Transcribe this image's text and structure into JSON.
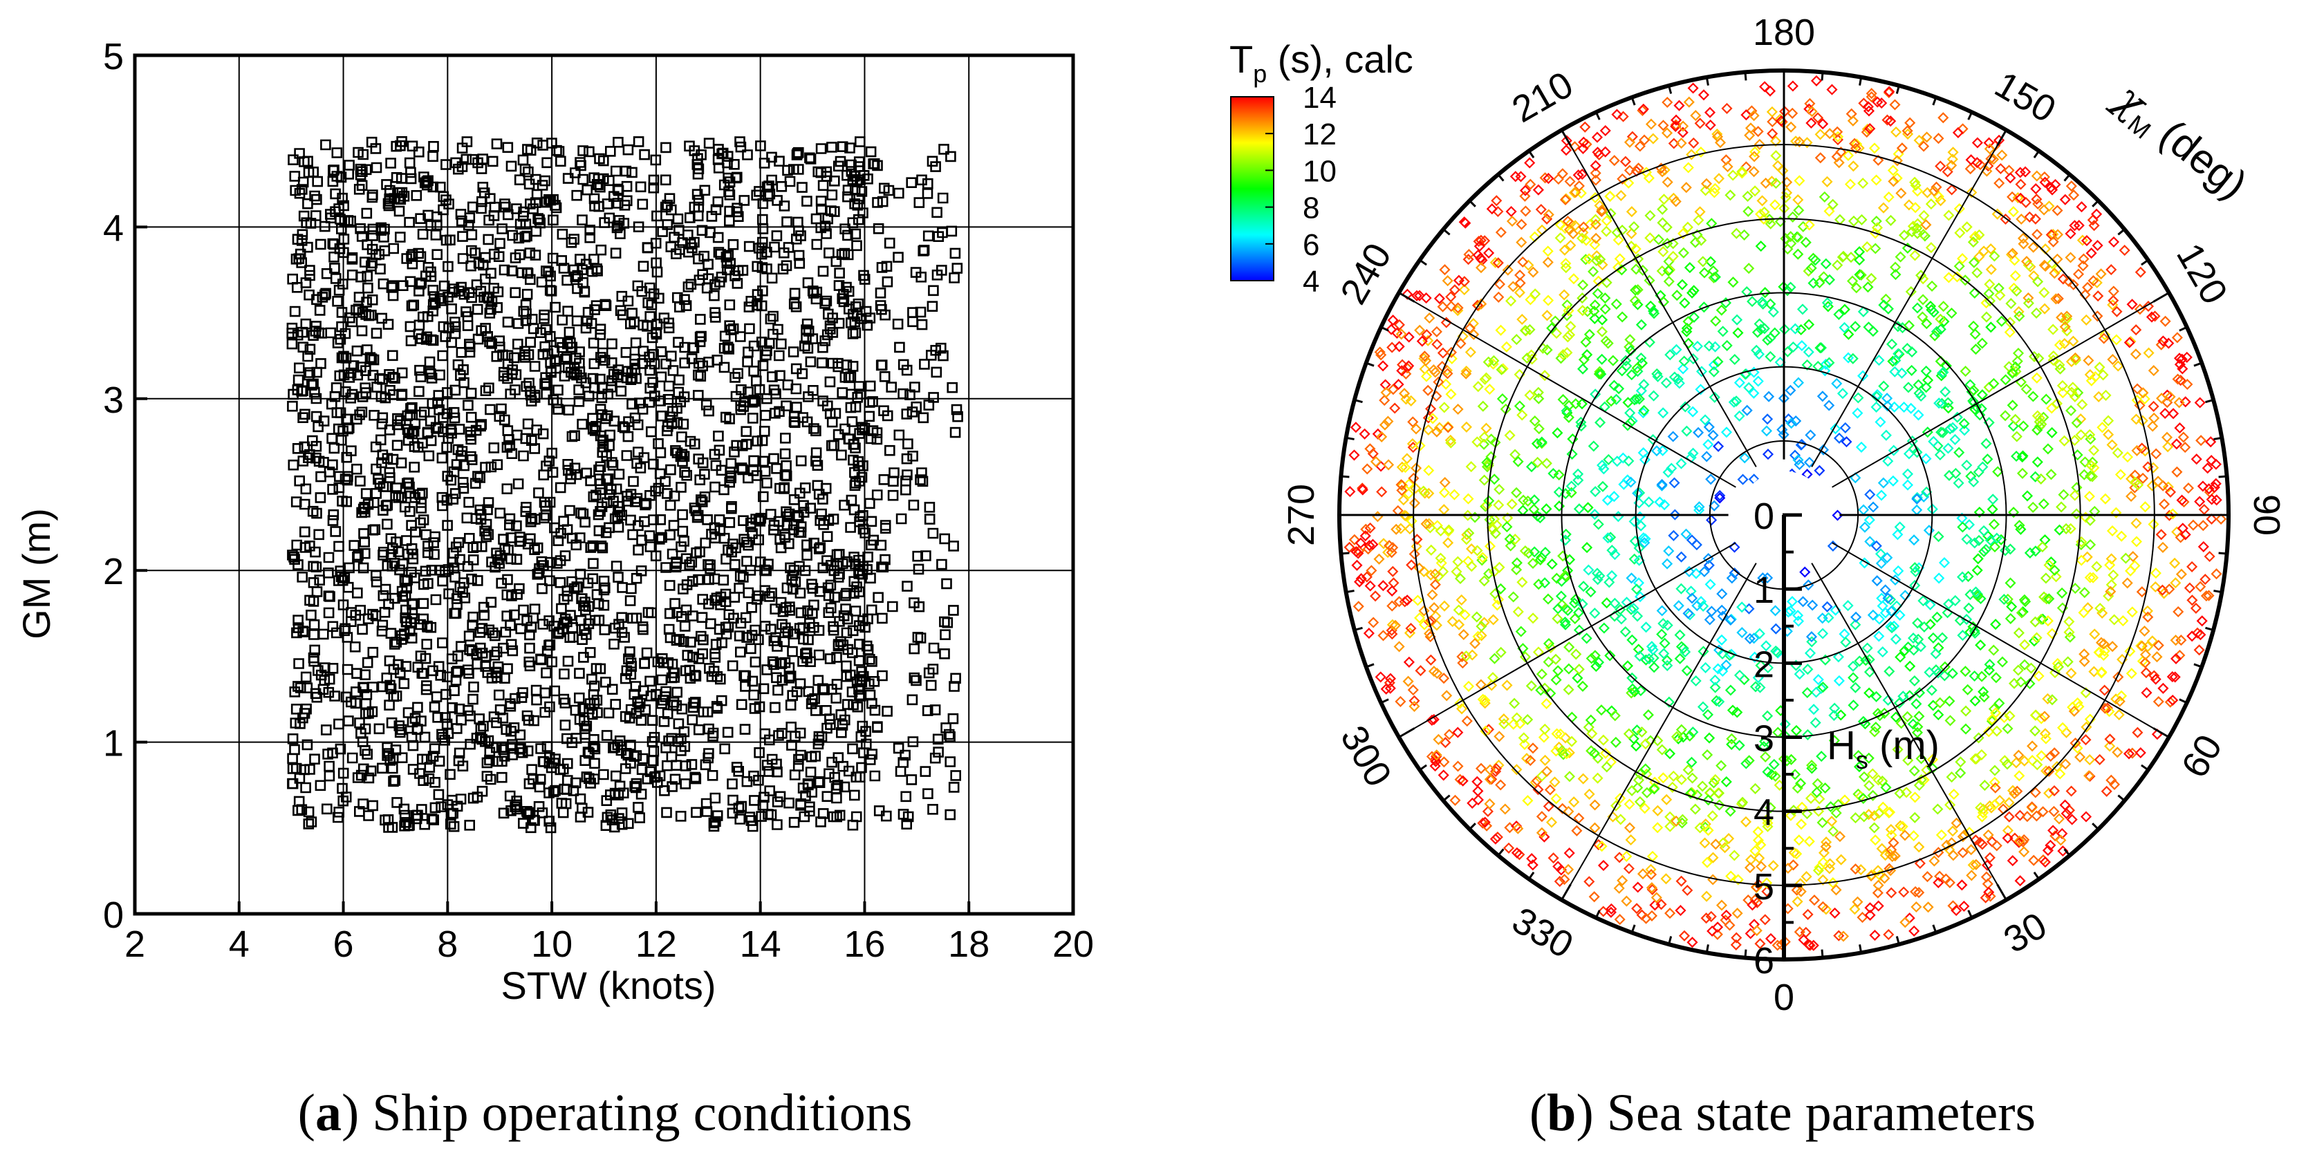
{
  "chart_data": [
    {
      "id": "a",
      "type": "scatter",
      "xlabel": "STW (knots)",
      "ylabel": "GM (m)",
      "xlim": [
        2,
        20
      ],
      "ylim": [
        0,
        5
      ],
      "xticks": [
        "2",
        "4",
        "6",
        "8",
        "10",
        "12",
        "14",
        "16",
        "18",
        "20"
      ],
      "yticks": [
        "0",
        "1",
        "2",
        "3",
        "4",
        "5"
      ],
      "grid": true,
      "marker": "square",
      "marker_color": "#000000",
      "point_cloud": {
        "count": 3000,
        "x_range": [
          5,
          17.8
        ],
        "y_range": [
          0.5,
          4.5
        ],
        "density_note": "dense uniform cloud for STW 5-16 knots, sparser between 16 and 17.8 knots"
      },
      "caption": {
        "label": "a",
        "text": " Ship operating conditions"
      }
    },
    {
      "id": "b",
      "type": "scatter",
      "projection": "polar",
      "radial_label": "H",
      "radial_label_sub": "s",
      "radial_label_tail": " (m)",
      "radial_ticks": [
        "0",
        "1",
        "2",
        "3",
        "4",
        "5",
        "6"
      ],
      "r_max": 6,
      "angle_label": "χ",
      "angle_label_sub": "M",
      "angle_label_tail": " (deg)",
      "angle_ticks": [
        "0",
        "30",
        "60",
        "90",
        "120",
        "150",
        "180",
        "210",
        "240",
        "270",
        "300",
        "330"
      ],
      "angle_convention": "0 at bottom, 180 at top, increasing counter-clockwise (90 on the right)",
      "marker": "diamond",
      "colorbar": {
        "title": "T",
        "title_sub": "p",
        "title_tail": " (s), calc",
        "min": 4,
        "max": 14,
        "ticks": [
          "4",
          "6",
          "8",
          "10",
          "12",
          "14"
        ],
        "colormap": [
          "#0000ff",
          "#00ffff",
          "#00ff00",
          "#ffff00",
          "#ff0000"
        ]
      },
      "point_cloud": {
        "count": 2800,
        "hs_range": [
          0.5,
          5.9
        ],
        "tp_relation": "Tp grows with Hs: ~5 s near Hs 0.5 m, ~14 s near Hs 6 m"
      },
      "caption": {
        "label": "b",
        "text": " Sea state parameters"
      }
    }
  ]
}
